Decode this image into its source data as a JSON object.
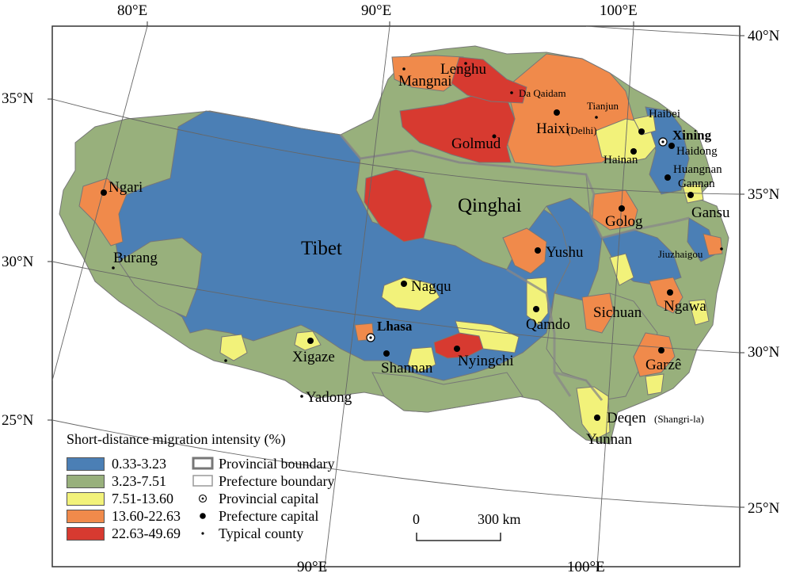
{
  "colors": {
    "class_1": "#4b7fb5",
    "class_2": "#98b07c",
    "class_3": "#f2f27a",
    "class_4": "#f08a4b",
    "class_5": "#d73a30",
    "boundary": "#888888",
    "frame": "#333333"
  },
  "coordinates": {
    "top_lon_1": "80°E",
    "top_lon_2": "90°E",
    "top_lon_3": "100°E",
    "bottom_lon_1": "90°E",
    "bottom_lon_2": "100°E",
    "left_lat_1": "35°N",
    "left_lat_2": "30°N",
    "left_lat_3": "25°N",
    "right_lat_1": "40°N",
    "right_lat_2": "35°N",
    "right_lat_3": "30°N",
    "right_lat_4": "25°N"
  },
  "regions": {
    "tibet": "Tibet",
    "qinghai": "Qinghai",
    "sichuan": "Sichuan",
    "gansu": "Gansu",
    "yunnan": "Yunnan"
  },
  "places": {
    "mangnai": "Mangnai",
    "lenghu": "Lenghu",
    "da_qaidam": "Da Qaidam",
    "tianjun": "Tianjun",
    "haixi": "Haixi",
    "haixi_sub": "(Delhi)",
    "haibei": "Haibei",
    "xining": "Xining",
    "haidong": "Haidong",
    "hainan": "Hainan",
    "huangnan": "Huangnan",
    "gannan": "Gannan",
    "golmud": "Golmud",
    "ngari": "Ngari",
    "burang": "Burang",
    "golog": "Golog",
    "jiuzhaigou": "Jiuzhaigou",
    "yushu": "Yushu",
    "nagqu": "Nagqu",
    "ngawa": "Ngawa",
    "lhasa": "Lhasa",
    "qamdo": "Qamdo",
    "xigaze": "Xigaze",
    "shannan": "Shannan",
    "nyingchi": "Nyingchi",
    "garze": "Garzê",
    "yadong": "Yadong",
    "deqen": "Deqen",
    "deqen_sub": "(Shangri-la)"
  },
  "legend": {
    "title": "Short-distance migration intensity (%)",
    "classes": [
      {
        "label": "0.33-3.23",
        "color": "#4b7fb5"
      },
      {
        "label": "3.23-7.51",
        "color": "#98b07c"
      },
      {
        "label": "7.51-13.60",
        "color": "#f2f27a"
      },
      {
        "label": "13.60-22.63",
        "color": "#f08a4b"
      },
      {
        "label": "22.63-49.69",
        "color": "#d73a30"
      }
    ],
    "symbols": [
      {
        "label": "Provincial boundary",
        "icon": "provincial-boundary-icon"
      },
      {
        "label": "Prefecture boundary",
        "icon": "prefecture-boundary-icon"
      },
      {
        "label": "Provincial capital",
        "icon": "provincial-capital-icon"
      },
      {
        "label": "Prefecture capital",
        "icon": "prefecture-capital-icon"
      },
      {
        "label": "Typical county",
        "icon": "typical-county-icon"
      }
    ]
  },
  "scale_bar": {
    "start": "0",
    "end": "300 km"
  }
}
